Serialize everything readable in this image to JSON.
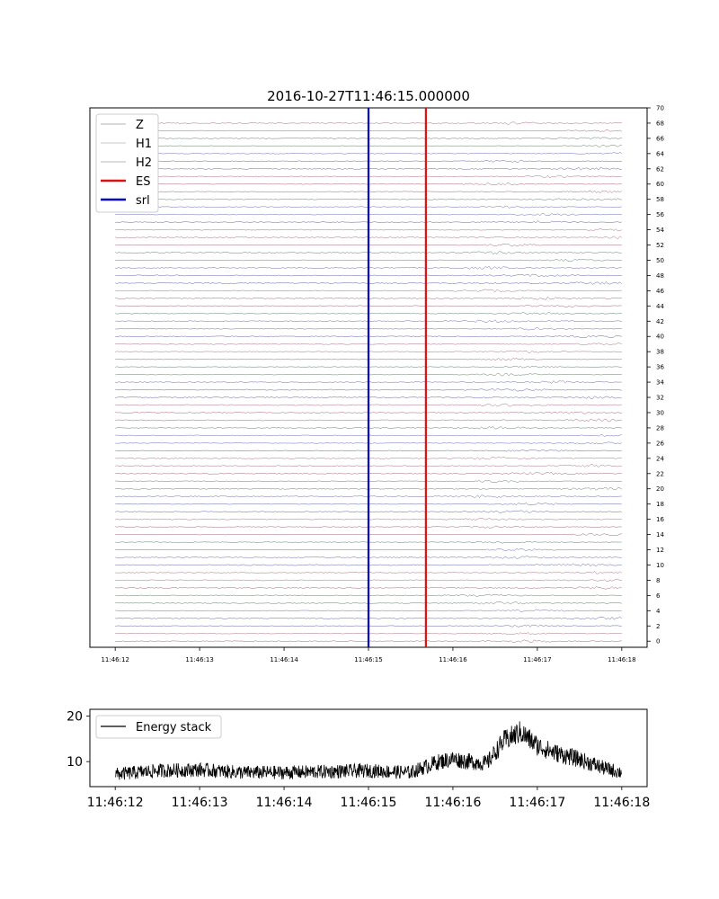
{
  "chart_data": [
    {
      "type": "line",
      "title": "2016-10-27T11:46:15.000000",
      "x_tick_labels": [
        "11:46:12",
        "11:46:13",
        "11:46:14",
        "11:46:15",
        "11:46:16",
        "11:46:17",
        "11:46:18"
      ],
      "y_ticks": [
        0,
        2,
        4,
        6,
        8,
        10,
        12,
        14,
        16,
        18,
        20,
        22,
        24,
        26,
        28,
        30,
        32,
        34,
        36,
        38,
        40,
        42,
        44,
        46,
        48,
        50,
        52,
        54,
        56,
        58,
        60,
        62,
        64,
        66,
        68,
        70
      ],
      "xlim_seconds": [
        -0.3,
        6.3
      ],
      "ylim": [
        -0.8,
        70
      ],
      "trace_count": 69,
      "legend_position": "top-left",
      "grid": false,
      "series": [
        {
          "name": "Z",
          "color": "#d9d9d9"
        },
        {
          "name": "H1",
          "color": "#e3e3e3"
        },
        {
          "name": "H2",
          "color": "#dcdcdc"
        }
      ],
      "picks": [
        {
          "name": "ES",
          "color": "#dd1111",
          "x_seconds": 3.68
        },
        {
          "name": "srl",
          "color": "#0000cc",
          "x_seconds": 3.0
        }
      ]
    },
    {
      "type": "line",
      "series": [
        {
          "name": "Energy stack",
          "color": "#000000"
        }
      ],
      "x_tick_labels": [
        "11:46:12",
        "11:46:13",
        "11:46:14",
        "11:46:15",
        "11:46:16",
        "11:46:17",
        "11:46:18"
      ],
      "y_ticks": [
        10,
        20
      ],
      "xlim_seconds": [
        -0.3,
        6.3
      ],
      "ylim": [
        4.5,
        21.5
      ],
      "legend_position": "top-left",
      "grid": false,
      "envelope": [
        [
          0,
          7.2
        ],
        [
          0.5,
          8.0
        ],
        [
          1.0,
          8.2
        ],
        [
          1.5,
          7.6
        ],
        [
          2.0,
          7.6
        ],
        [
          2.5,
          7.8
        ],
        [
          3.0,
          8.0
        ],
        [
          3.5,
          7.6
        ],
        [
          3.8,
          9.8
        ],
        [
          4.0,
          10.6
        ],
        [
          4.2,
          10.0
        ],
        [
          4.4,
          9.6
        ],
        [
          4.6,
          14.5
        ],
        [
          4.8,
          16.5
        ],
        [
          5.0,
          13.5
        ],
        [
          5.2,
          12.0
        ],
        [
          5.5,
          10.5
        ],
        [
          5.8,
          8.5
        ],
        [
          6.0,
          7.6
        ]
      ]
    }
  ]
}
